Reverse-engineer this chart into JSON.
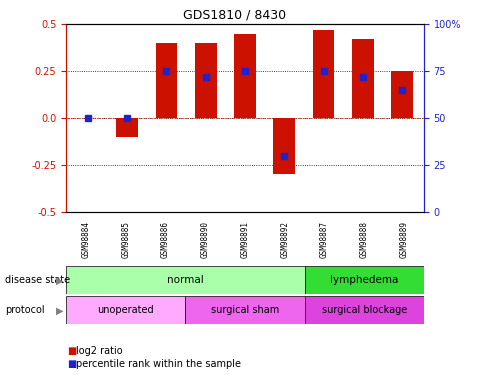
{
  "title": "GDS1810 / 8430",
  "samples": [
    "GSM98884",
    "GSM98885",
    "GSM98886",
    "GSM98890",
    "GSM98891",
    "GSM98892",
    "GSM98887",
    "GSM98888",
    "GSM98889"
  ],
  "log2_ratio": [
    0.002,
    -0.1,
    0.4,
    0.4,
    0.45,
    -0.3,
    0.47,
    0.42,
    0.25
  ],
  "percentile": [
    50,
    50,
    75,
    72,
    75,
    30,
    75,
    72,
    65
  ],
  "bar_color": "#cc1100",
  "dot_color": "#2222cc",
  "ylim": [
    -0.5,
    0.5
  ],
  "yticks_left": [
    -0.5,
    -0.25,
    0.0,
    0.25,
    0.5
  ],
  "yticks_right": [
    0,
    25,
    50,
    75,
    100
  ],
  "dotted_lines": [
    -0.25,
    0.0,
    0.25
  ],
  "disease_state_labels": [
    {
      "label": "normal",
      "start": 0,
      "end": 6,
      "color": "#aaffaa"
    },
    {
      "label": "lymphedema",
      "start": 6,
      "end": 9,
      "color": "#33dd33"
    }
  ],
  "protocol_labels": [
    {
      "label": "unoperated",
      "start": 0,
      "end": 3,
      "color": "#ffaaff"
    },
    {
      "label": "surgical sham",
      "start": 3,
      "end": 6,
      "color": "#ee66ee"
    },
    {
      "label": "surgical blockage",
      "start": 6,
      "end": 9,
      "color": "#dd44dd"
    }
  ],
  "legend_items": [
    {
      "label": "log2 ratio",
      "color": "#cc1100"
    },
    {
      "label": "percentile rank within the sample",
      "color": "#2222cc"
    }
  ],
  "tick_label_color_left": "#cc1100",
  "tick_label_color_right": "#2222cc",
  "gray_box_color": "#cccccc",
  "gray_box_sep_color": "#aaaaaa"
}
